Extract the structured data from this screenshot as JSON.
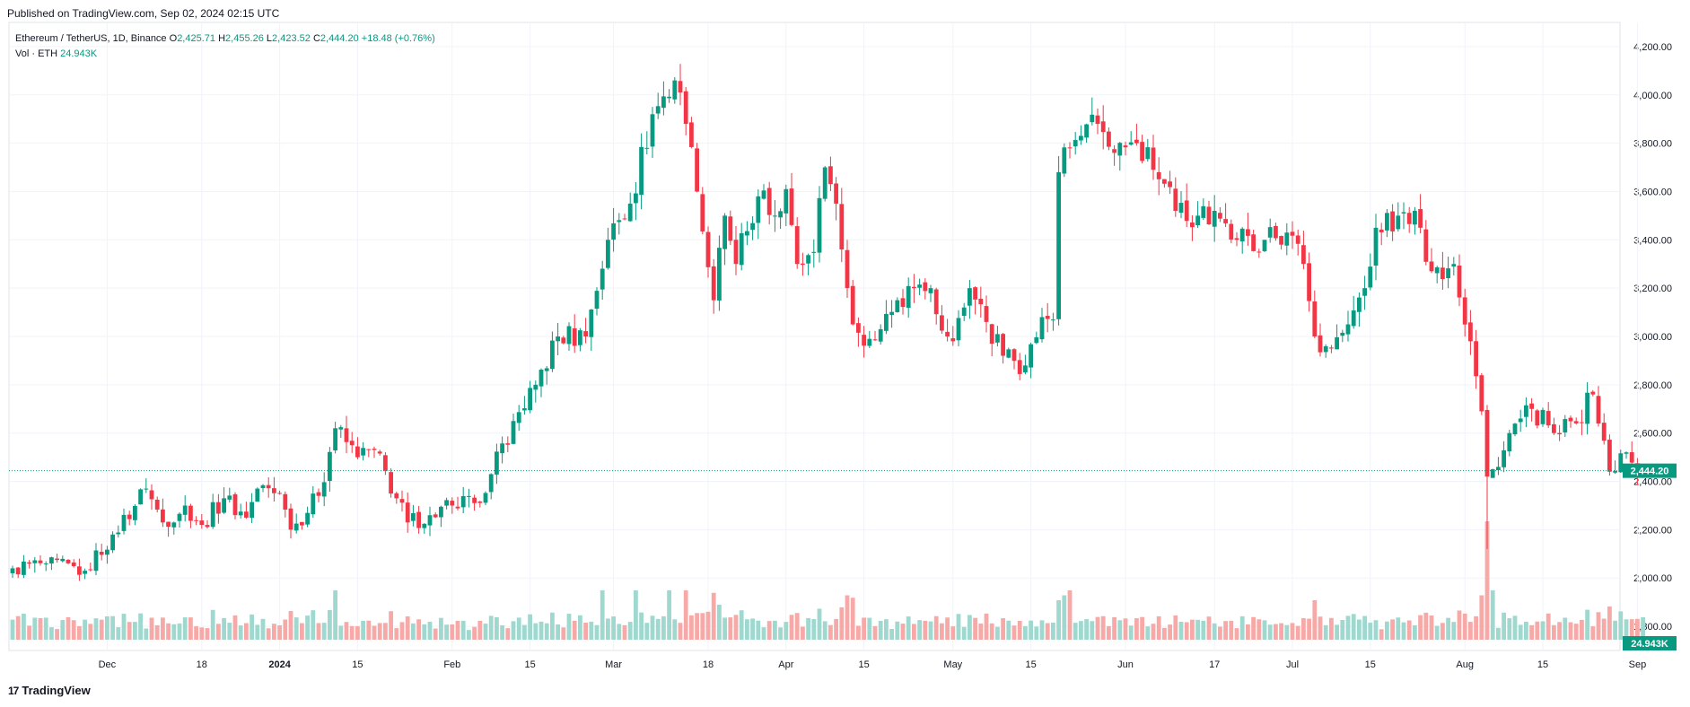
{
  "header": {
    "published": "Published on TradingView.com, Sep 02, 2024 02:15 UTC"
  },
  "legend": {
    "symbol": "Ethereum / TetherUS, 1D, Binance",
    "o_label": "O",
    "o_value": "2,425.71",
    "h_label": "H",
    "h_value": "2,455.26",
    "l_label": "L",
    "l_value": "2,423.52",
    "c_label": "C",
    "c_value": "2,444.20",
    "change": "+18.48 (+0.76%)",
    "vol_label": "Vol · ETH",
    "vol_value": "24.943K"
  },
  "footer": {
    "brand": "TradingView",
    "logo": "17"
  },
  "colors": {
    "up": "#089981",
    "down": "#F23645",
    "up_vol": "#9FD8CF",
    "down_vol": "#F7A9A7",
    "grid": "#F0F3FA",
    "text": "#131722"
  },
  "chart_data": {
    "type": "candlestick",
    "title": "Ethereum / TetherUS, 1D, Binance",
    "ylim": [
      1700,
      4300
    ],
    "y_ticks": [
      "4,200.00",
      "4,000.00",
      "3,800.00",
      "3,600.00",
      "3,400.00",
      "3,200.00",
      "3,000.00",
      "2,800.00",
      "2,600.00",
      "2,400.00",
      "2,200.00",
      "2,000.00",
      "1,800.00"
    ],
    "y_tick_values": [
      4200,
      4000,
      3800,
      3600,
      3400,
      3200,
      3000,
      2800,
      2600,
      2400,
      2200,
      2000,
      1800
    ],
    "x_ticks": [
      {
        "label": "Dec",
        "date": "2023-12-01",
        "bold": false
      },
      {
        "label": "18",
        "date": "2023-12-18",
        "bold": false
      },
      {
        "label": "2024",
        "date": "2024-01-01",
        "bold": true
      },
      {
        "label": "15",
        "date": "2024-01-15",
        "bold": false
      },
      {
        "label": "Feb",
        "date": "2024-02-01",
        "bold": false
      },
      {
        "label": "15",
        "date": "2024-02-15",
        "bold": false
      },
      {
        "label": "Mar",
        "date": "2024-03-01",
        "bold": false
      },
      {
        "label": "18",
        "date": "2024-03-18",
        "bold": false
      },
      {
        "label": "Apr",
        "date": "2024-04-01",
        "bold": false
      },
      {
        "label": "15",
        "date": "2024-04-15",
        "bold": false
      },
      {
        "label": "May",
        "date": "2024-05-01",
        "bold": false
      },
      {
        "label": "15",
        "date": "2024-05-15",
        "bold": false
      },
      {
        "label": "Jun",
        "date": "2024-06-01",
        "bold": false
      },
      {
        "label": "17",
        "date": "2024-06-17",
        "bold": false
      },
      {
        "label": "Jul",
        "date": "2024-07-01",
        "bold": false
      },
      {
        "label": "15",
        "date": "2024-07-15",
        "bold": false
      },
      {
        "label": "Aug",
        "date": "2024-08-01",
        "bold": false
      },
      {
        "label": "15",
        "date": "2024-08-15",
        "bold": false
      },
      {
        "label": "Sep",
        "date": "2024-09-01",
        "bold": false
      }
    ],
    "last_price": 2444.2,
    "last_price_label": "2,444.20",
    "last_volume_label": "24.943K",
    "start_date": "2023-11-14",
    "keypoints": [
      [
        "2023-11-14",
        2040
      ],
      [
        "2023-11-20",
        2060
      ],
      [
        "2023-11-27",
        2030
      ],
      [
        "2023-12-02",
        2180
      ],
      [
        "2023-12-08",
        2370
      ],
      [
        "2023-12-11",
        2230
      ],
      [
        "2023-12-15",
        2300
      ],
      [
        "2023-12-18",
        2220
      ],
      [
        "2023-12-22",
        2330
      ],
      [
        "2023-12-26",
        2250
      ],
      [
        "2023-12-28",
        2370
      ],
      [
        "2024-01-01",
        2350
      ],
      [
        "2024-01-03",
        2200
      ],
      [
        "2024-01-08",
        2340
      ],
      [
        "2024-01-11",
        2620
      ],
      [
        "2024-01-15",
        2500
      ],
      [
        "2024-01-18",
        2530
      ],
      [
        "2024-01-22",
        2330
      ],
      [
        "2024-01-24",
        2230
      ],
      [
        "2024-01-28",
        2260
      ],
      [
        "2024-02-01",
        2300
      ],
      [
        "2024-02-05",
        2310
      ],
      [
        "2024-02-08",
        2430
      ],
      [
        "2024-02-12",
        2650
      ],
      [
        "2024-02-16",
        2800
      ],
      [
        "2024-02-20",
        3000
      ],
      [
        "2024-02-25",
        3000
      ],
      [
        "2024-02-29",
        3400
      ],
      [
        "2024-03-04",
        3550
      ],
      [
        "2024-03-08",
        3920
      ],
      [
        "2024-03-12",
        4060
      ],
      [
        "2024-03-14",
        3880
      ],
      [
        "2024-03-16",
        3600
      ],
      [
        "2024-03-19",
        3150
      ],
      [
        "2024-03-21",
        3500
      ],
      [
        "2024-03-23",
        3300
      ],
      [
        "2024-03-27",
        3580
      ],
      [
        "2024-03-30",
        3500
      ],
      [
        "2024-04-01",
        3610
      ],
      [
        "2024-04-03",
        3300
      ],
      [
        "2024-04-06",
        3350
      ],
      [
        "2024-04-08",
        3700
      ],
      [
        "2024-04-10",
        3550
      ],
      [
        "2024-04-13",
        3050
      ],
      [
        "2024-04-16",
        2990
      ],
      [
        "2024-04-18",
        3030
      ],
      [
        "2024-04-21",
        3150
      ],
      [
        "2024-04-24",
        3200
      ],
      [
        "2024-04-27",
        3200
      ],
      [
        "2024-04-30",
        3000
      ],
      [
        "2024-05-01",
        2980
      ],
      [
        "2024-05-04",
        3200
      ],
      [
        "2024-05-07",
        3060
      ],
      [
        "2024-05-10",
        2920
      ],
      [
        "2024-05-14",
        2880
      ],
      [
        "2024-05-17",
        3080
      ],
      [
        "2024-05-19",
        3070
      ],
      [
        "2024-05-20",
        3680
      ],
      [
        "2024-05-22",
        3780
      ],
      [
        "2024-05-27",
        3880
      ],
      [
        "2024-05-30",
        3760
      ],
      [
        "2024-06-03",
        3800
      ],
      [
        "2024-06-06",
        3690
      ],
      [
        "2024-06-10",
        3520
      ],
      [
        "2024-06-14",
        3500
      ],
      [
        "2024-06-17",
        3520
      ],
      [
        "2024-06-21",
        3400
      ],
      [
        "2024-06-26",
        3400
      ],
      [
        "2024-06-30",
        3430
      ],
      [
        "2024-07-03",
        3300
      ],
      [
        "2024-07-05",
        3000
      ],
      [
        "2024-07-08",
        2950
      ],
      [
        "2024-07-11",
        3050
      ],
      [
        "2024-07-14",
        3200
      ],
      [
        "2024-07-16",
        3450
      ],
      [
        "2024-07-20",
        3500
      ],
      [
        "2024-07-24",
        3450
      ],
      [
        "2024-07-26",
        3270
      ],
      [
        "2024-07-30",
        3300
      ],
      [
        "2024-08-02",
        2980
      ],
      [
        "2024-08-04",
        2690
      ],
      [
        "2024-08-05",
        2420
      ],
      [
        "2024-08-07",
        2460
      ],
      [
        "2024-08-09",
        2600
      ],
      [
        "2024-08-13",
        2700
      ],
      [
        "2024-08-17",
        2600
      ],
      [
        "2024-08-21",
        2640
      ],
      [
        "2024-08-24",
        2760
      ],
      [
        "2024-08-27",
        2440
      ],
      [
        "2024-08-30",
        2520
      ],
      [
        "2024-09-01",
        2430
      ],
      [
        "2024-09-02",
        2444
      ]
    ],
    "volume_spikes": [
      [
        "2024-01-11",
        1.0
      ],
      [
        "2024-02-28",
        1.0
      ],
      [
        "2024-03-05",
        1.0
      ],
      [
        "2024-03-11",
        1.0
      ],
      [
        "2024-03-14",
        1.0
      ],
      [
        "2024-03-19",
        0.95
      ],
      [
        "2024-04-12",
        0.9
      ],
      [
        "2024-04-13",
        0.85
      ],
      [
        "2024-05-20",
        0.8
      ],
      [
        "2024-05-21",
        0.9
      ],
      [
        "2024-05-22",
        1.0
      ],
      [
        "2024-07-05",
        0.8
      ],
      [
        "2024-08-04",
        0.9
      ],
      [
        "2024-08-05",
        2.4
      ],
      [
        "2024-08-06",
        1.0
      ]
    ]
  }
}
